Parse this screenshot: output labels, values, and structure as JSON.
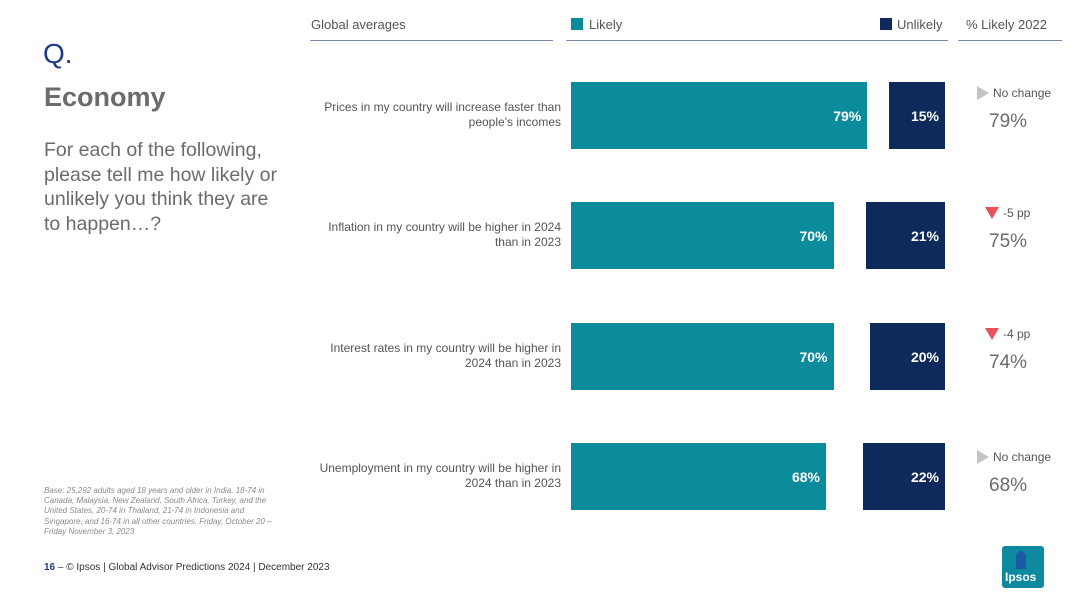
{
  "q_mark": "Q.",
  "title": "Economy",
  "question": "For each of the following, please tell me how likely or unlikely you think they are to happen…?",
  "header": {
    "global_averages": "Global averages",
    "likely": "Likely",
    "unlikely": "Unlikely",
    "pct_likely_2022": "% Likely 2022"
  },
  "colors": {
    "likely": "#0b8c9c",
    "unlikely": "#0e2a5a",
    "decrease": "#e8525a",
    "no_change": "#c4c4c4"
  },
  "chart_data": {
    "type": "bar",
    "categories": [
      "Prices in my country will increase faster than people's incomes",
      "Inflation in my country  will be higher in 2024 than in 2023",
      "Interest rates in my country will be higher in 2024 than in 2023",
      "Unemployment in my country will be higher in 2024 than in 2023"
    ],
    "series": [
      {
        "name": "Likely",
        "values": [
          79,
          70,
          70,
          68
        ]
      },
      {
        "name": "Unlikely",
        "values": [
          15,
          21,
          20,
          22
        ]
      }
    ],
    "value_suffix": "%",
    "xlim": [
      0,
      100
    ]
  },
  "rows": [
    {
      "label": "Prices in my country will increase faster than people's incomes",
      "likely": "79%",
      "unlikely": "15%",
      "change": "No change",
      "change_type": "none",
      "prev": "79%"
    },
    {
      "label": "Inflation in my country  will be higher in 2024 than in 2023",
      "likely": "70%",
      "unlikely": "21%",
      "change": "-5 pp",
      "change_type": "down",
      "prev": "75%"
    },
    {
      "label": "Interest rates in my country will be higher in 2024 than in 2023",
      "likely": "70%",
      "unlikely": "20%",
      "change": "-4 pp",
      "change_type": "down",
      "prev": "74%"
    },
    {
      "label": "Unemployment in my country will be higher in 2024 than in 2023",
      "likely": "68%",
      "unlikely": "22%",
      "change": "No change",
      "change_type": "none",
      "prev": "68%"
    }
  ],
  "base_note": "Base: 25,292 adults aged 18 years and older in India, 18-74 in Canada, Malaysia, New Zealand, South Africa, Turkey, and the United States, 20-74 in Thailand, 21-74 in Indonesia and Singapore, and 16-74 in all other countries. Friday, October 20 – Friday November 3, 2023",
  "footer": {
    "page": "16",
    "sep": "–",
    "text": "© Ipsos | Global Advisor Predictions 2024 | December 2023"
  },
  "logo_text": "Ipsos"
}
